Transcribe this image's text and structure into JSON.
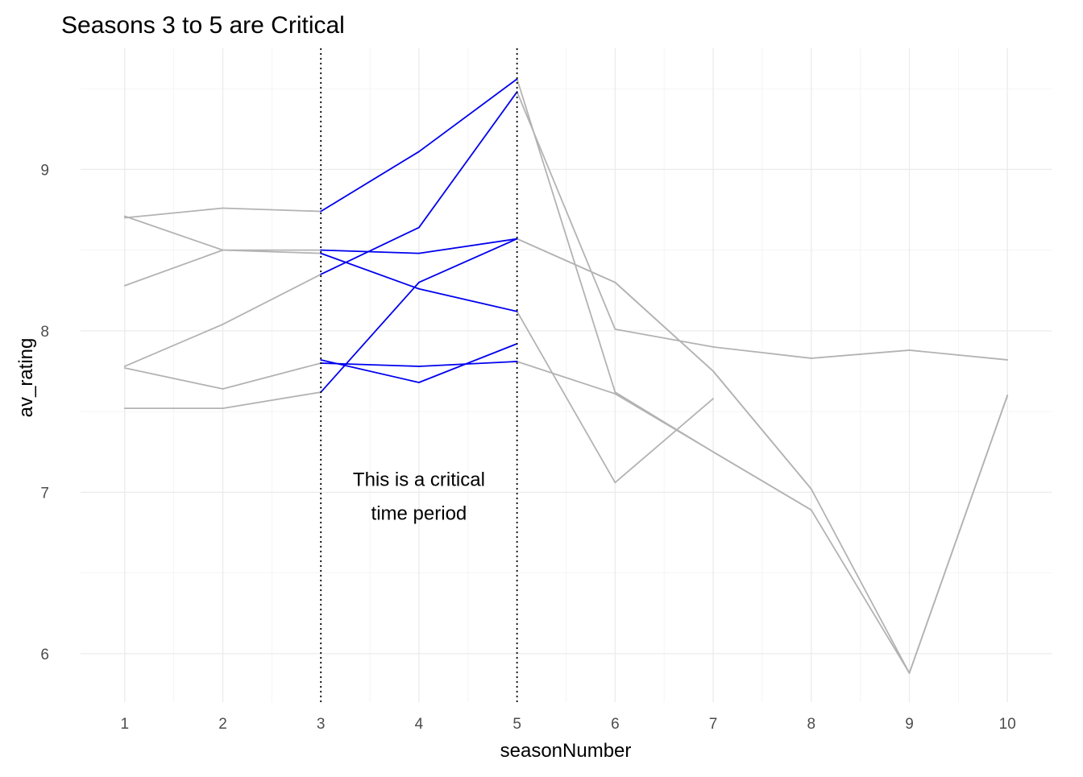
{
  "chart_data": {
    "type": "line",
    "title": "Seasons 3 to 5 are Critical",
    "xlabel": "seasonNumber",
    "ylabel": "av_rating",
    "xlim": [
      0.55,
      10.45
    ],
    "ylim": [
      5.7,
      9.75
    ],
    "x_ticks": [
      1,
      2,
      3,
      4,
      5,
      6,
      7,
      8,
      9,
      10
    ],
    "y_ticks": [
      6,
      7,
      8,
      9
    ],
    "grid": true,
    "highlight_range": [
      3,
      5
    ],
    "annotation": {
      "x": 4,
      "y": 6.97,
      "lines": [
        "This is a critical",
        "time period"
      ]
    },
    "colors": {
      "background": "#ffffff",
      "context_series": "#b3b3b3",
      "highlight_series": "#0000ee",
      "reference_line": "#000000"
    },
    "series": [
      {
        "x": [
          1,
          2,
          3,
          4,
          5,
          6,
          7,
          8
        ],
        "y": [
          8.71,
          8.5,
          8.5,
          8.48,
          8.57,
          8.3,
          7.75,
          7.02
        ]
      },
      {
        "x": [
          1,
          2,
          3,
          4,
          5,
          6,
          7,
          8,
          9,
          10
        ],
        "y": [
          7.78,
          8.04,
          8.35,
          8.64,
          9.48,
          8.01,
          7.9,
          7.83,
          7.88,
          7.82
        ]
      },
      {
        "x": [
          1,
          2,
          3,
          4,
          5,
          6,
          7,
          8,
          9,
          10
        ],
        "y": [
          7.52,
          7.52,
          7.62,
          8.3,
          8.57,
          8.3,
          7.75,
          7.02,
          5.88,
          7.6
        ]
      },
      {
        "x": [
          1,
          2,
          3,
          4,
          5,
          6,
          7,
          8
        ],
        "y": [
          7.77,
          7.64,
          7.8,
          7.78,
          7.81,
          7.61,
          7.25,
          6.89
        ]
      },
      {
        "x": [
          1,
          2,
          3,
          4,
          5,
          6,
          7
        ],
        "y": [
          8.28,
          8.5,
          8.48,
          8.26,
          8.12,
          7.06,
          7.58
        ]
      },
      {
        "x": [
          1,
          2,
          3,
          4,
          5,
          6,
          7,
          8,
          9,
          10
        ],
        "y": [
          8.7,
          8.76,
          8.74,
          9.11,
          9.56,
          7.62,
          7.25,
          6.89,
          5.88,
          7.6
        ]
      },
      {
        "x": [
          3,
          4,
          5
        ],
        "y": [
          7.82,
          7.68,
          7.92
        ]
      }
    ]
  }
}
